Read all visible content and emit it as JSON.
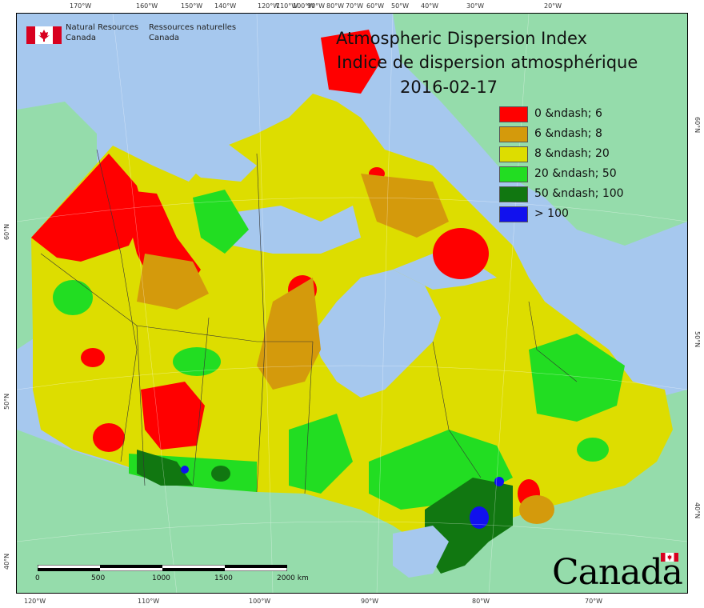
{
  "title": {
    "line1": "Atmospheric Dispersion Index",
    "line2": "Indice de dispersion atmosphérique",
    "date": "2016-02-17"
  },
  "agency": {
    "en_line1": "Natural Resources",
    "en_line2": "Canada",
    "fr_line1": "Ressources naturelles",
    "fr_line2": "Canada"
  },
  "legend": [
    {
      "label": "0 &ndash; 6",
      "color": "#ff0000"
    },
    {
      "label": "6 &ndash; 8",
      "color": "#d49a0c"
    },
    {
      "label": "8 &ndash; 20",
      "color": "#dddd00"
    },
    {
      "label": "20 &ndash; 50",
      "color": "#22dd22"
    },
    {
      "label": "50 &ndash; 100",
      "color": "#117711"
    },
    {
      "label": "> 100",
      "color": "#1111ee"
    }
  ],
  "scale_bar": {
    "labels": [
      "0",
      "500",
      "1000",
      "1500",
      "2000 km"
    ]
  },
  "axis": {
    "top": [
      "170°W",
      "160°W",
      "150°W",
      "140°W",
      "120°W",
      "110°W",
      "100°W",
      "90°W",
      "80°W",
      "70°W",
      "60°W",
      "50°W",
      "40°W",
      "30°W",
      "20°W"
    ],
    "bottom": [
      "120°W",
      "110°W",
      "100°W",
      "90°W",
      "80°W",
      "70°W"
    ],
    "left": [
      "40°N",
      "50°N",
      "60°N"
    ],
    "right": [
      "40°N",
      "50°N",
      "60°N"
    ]
  },
  "wordmark": "Canada",
  "colors": {
    "ocean": "#a6c8ee",
    "land_outside": "#95dcab",
    "boundary": "#333333"
  }
}
